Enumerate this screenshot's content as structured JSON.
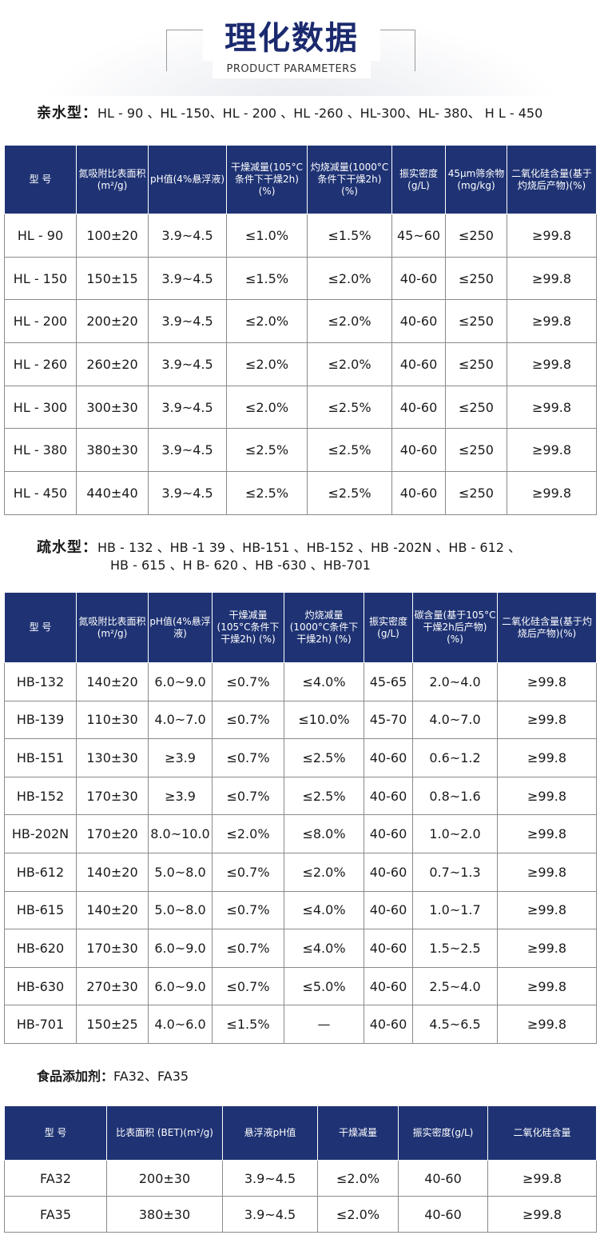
{
  "header": {
    "title": "理化数据",
    "subtitle": "PRODUCT PARAMETERS"
  },
  "hydrophilic": {
    "label": "亲水型：",
    "models": "HL - 90 、HL -150、HL - 200 、HL -260 、HL-300、HL- 380、 H L - 450",
    "columns": [
      "型 号",
      "氮吸附比表面积(m²/g)",
      "pH值(4%悬浮液)",
      "干燥减量(105°C条件下干燥2h) (%)",
      "灼烧减量(1000°C条件下干燥2h) (%)",
      "振实密度(g/L)",
      "45μm筛余物(mg/kg)",
      "二氧化硅含量(基于灼烧后产物)(%)"
    ],
    "rows": [
      [
        "HL - 90",
        "100±20",
        "3.9~4.5",
        "≤1.0%",
        "≤1.5%",
        "45~60",
        "≤250",
        "≥99.8"
      ],
      [
        "HL - 150",
        "150±15",
        "3.9~4.5",
        "≤1.5%",
        "≤2.0%",
        "40-60",
        "≤250",
        "≥99.8"
      ],
      [
        "HL - 200",
        "200±20",
        "3.9~4.5",
        "≤2.0%",
        "≤2.0%",
        "40-60",
        "≤250",
        "≥99.8"
      ],
      [
        "HL - 260",
        "260±20",
        "3.9~4.5",
        "≤2.0%",
        "≤2.0%",
        "40-60",
        "≤250",
        "≥99.8"
      ],
      [
        "HL - 300",
        "300±30",
        "3.9~4.5",
        "≤2.0%",
        "≤2.5%",
        "40-60",
        "≤250",
        "≥99.8"
      ],
      [
        "HL - 380",
        "380±30",
        "3.9~4.5",
        "≤2.5%",
        "≤2.5%",
        "40-60",
        "≤250",
        "≥99.8"
      ],
      [
        "HL - 450",
        "440±40",
        "3.9~4.5",
        "≤2.5%",
        "≤2.5%",
        "40-60",
        "≤250",
        "≥99.8"
      ]
    ]
  },
  "hydrophobic": {
    "label": "疏水型：",
    "models_line1": "HB - 132 、HB -1 39 、HB-151 、HB-152 、HB -202N 、HB - 612 、",
    "models_line2": "HB - 615 、H B- 620 、HB -630 、HB-701",
    "columns": [
      "型 号",
      "氮吸附比表面积(m²/g)",
      "pH值(4%悬浮液)",
      "干燥减量(105°C条件下干燥2h) (%)",
      "灼烧减量(1000°C条件下干燥2h) (%)",
      "振实密度(g/L)",
      "碳含量(基于105°C干燥2h后产物) (%)",
      "二氧化硅含量(基于灼烧后产物)(%)"
    ],
    "rows": [
      [
        "HB-132",
        "140±20",
        "6.0~9.0",
        "≤0.7%",
        "≤4.0%",
        "45-65",
        "2.0~4.0",
        "≥99.8"
      ],
      [
        "HB-139",
        "110±30",
        "4.0~7.0",
        "≤0.7%",
        "≤10.0%",
        "45-70",
        "4.0~7.0",
        "≥99.8"
      ],
      [
        "HB-151",
        "130±30",
        "≥3.9",
        "≤0.7%",
        "≤2.5%",
        "40-60",
        "0.6~1.2",
        "≥99.8"
      ],
      [
        "HB-152",
        "170±30",
        "≥3.9",
        "≤0.7%",
        "≤2.5%",
        "40-60",
        "0.8~1.6",
        "≥99.8"
      ],
      [
        "HB-202N",
        "170±20",
        "8.0~10.0",
        "≤2.0%",
        "≤8.0%",
        "40-60",
        "1.0~2.0",
        "≥99.8"
      ],
      [
        "HB-612",
        "140±20",
        "5.0~8.0",
        "≤0.7%",
        "≤2.0%",
        "40-60",
        "0.7~1.3",
        "≥99.8"
      ],
      [
        "HB-615",
        "140±20",
        "5.0~8.0",
        "≤0.7%",
        "≤4.0%",
        "40-60",
        "1.0~1.7",
        "≥99.8"
      ],
      [
        "HB-620",
        "170±30",
        "6.0~9.0",
        "≤0.7%",
        "≤4.0%",
        "40-60",
        "1.5~2.5",
        "≥99.8"
      ],
      [
        "HB-630",
        "270±30",
        "6.0~9.0",
        "≤0.7%",
        "≤5.0%",
        "40-60",
        "2.5~4.0",
        "≥99.8"
      ],
      [
        "HB-701",
        "150±25",
        "4.0~6.0",
        "≤1.5%",
        "—",
        "40-60",
        "4.5~6.5",
        "≥99.8"
      ]
    ]
  },
  "food_additive": {
    "label": "食品添加剂：",
    "models": "FA32、FA35",
    "columns": [
      "型 号",
      "比表面积 (BET)(m²/g)",
      "悬浮液pH值",
      "干燥减量",
      "振实密度(g/L)",
      "二氧化硅含量"
    ],
    "rows": [
      [
        "FA32",
        "200±30",
        "3.9~4.5",
        "≤2.0%",
        "40-60",
        "≥99.8"
      ],
      [
        "FA35",
        "380±30",
        "3.9~4.5",
        "≤2.0%",
        "40-60",
        "≥99.8"
      ]
    ]
  }
}
